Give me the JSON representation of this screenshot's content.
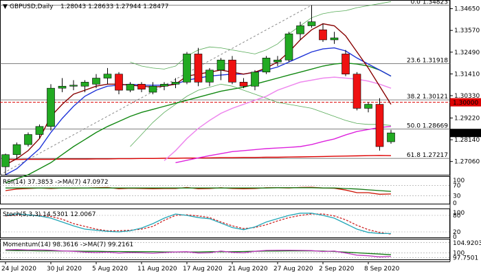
{
  "header": {
    "symbol_label": "GBPUSD,Daily",
    "ohlc": "1.28043 1.28633 1.27944 1.28477",
    "arrow_glyph": "▼"
  },
  "colors": {
    "bull": "#22aa22",
    "bear": "#ee1111",
    "wick": "#000000",
    "ma_fast": "#880000",
    "ma_mid": "#1f34d8",
    "ma_slow": "#118811",
    "ma_band": "#ee88ee",
    "ma_long": "#dd22dd",
    "ma_200": "#dd0000",
    "bollinger": "#55aa55",
    "fib": "#555555",
    "level_red": "#dd0000",
    "rsi": "#cc1100",
    "rsi_ma": "#117711",
    "stoch_k": "#22a7b7",
    "stoch_d": "#cc2222",
    "momentum": "#bb33bb",
    "momentum_ma": "#117711",
    "current_price_bg": "#000000",
    "level_price_bg": "#dd0000"
  },
  "chart_data": {
    "type": "candlestick",
    "title": "GBPUSD,Daily",
    "ylim": [
      1.264,
      1.3508
    ],
    "price_ticks": [
      "1.34650",
      "1.33570",
      "1.32490",
      "1.31410",
      "1.30330",
      "1.29220",
      "1.28140",
      "1.27060"
    ],
    "price_tick_values": [
      1.3465,
      1.3357,
      1.3249,
      1.3141,
      1.3033,
      1.2922,
      1.2814,
      1.2706
    ],
    "x_labels": [
      "24 Jul 2020",
      "30 Jul 2020",
      "5 Aug 2020",
      "11 Aug 2020",
      "17 Aug 2020",
      "21 Aug 2020",
      "27 Aug 2020",
      "2 Sep 2020",
      "8 Sep 2020"
    ],
    "x_label_bars": [
      0,
      4,
      8,
      12,
      16,
      20,
      24,
      28,
      32
    ],
    "candles": [
      [
        1.268,
        1.2745,
        1.264,
        1.274
      ],
      [
        1.274,
        1.28,
        1.272,
        1.279
      ],
      [
        1.279,
        1.285,
        1.278,
        1.284
      ],
      [
        1.284,
        1.289,
        1.282,
        1.288
      ],
      [
        1.288,
        1.309,
        1.286,
        1.307
      ],
      [
        1.307,
        1.312,
        1.305,
        1.308
      ],
      [
        1.308,
        1.311,
        1.306,
        1.3085
      ],
      [
        1.308,
        1.311,
        1.305,
        1.31
      ],
      [
        1.309,
        1.314,
        1.307,
        1.312
      ],
      [
        1.312,
        1.317,
        1.309,
        1.314
      ],
      [
        1.314,
        1.315,
        1.304,
        1.306
      ],
      [
        1.306,
        1.31,
        1.305,
        1.309
      ],
      [
        1.309,
        1.31,
        1.305,
        1.3065
      ],
      [
        1.305,
        1.31,
        1.304,
        1.308
      ],
      [
        1.308,
        1.31,
        1.306,
        1.309
      ],
      [
        1.309,
        1.312,
        1.307,
        1.31
      ],
      [
        1.31,
        1.325,
        1.309,
        1.324
      ],
      [
        1.324,
        1.327,
        1.308,
        1.31
      ],
      [
        1.31,
        1.317,
        1.308,
        1.316
      ],
      [
        1.316,
        1.322,
        1.311,
        1.321
      ],
      [
        1.321,
        1.323,
        1.309,
        1.31
      ],
      [
        1.31,
        1.312,
        1.307,
        1.308
      ],
      [
        1.308,
        1.316,
        1.306,
        1.315
      ],
      [
        1.315,
        1.323,
        1.314,
        1.322
      ],
      [
        1.32,
        1.323,
        1.318,
        1.321
      ],
      [
        1.321,
        1.335,
        1.32,
        1.334
      ],
      [
        1.334,
        1.34,
        1.331,
        1.338
      ],
      [
        1.338,
        1.3482,
        1.337,
        1.34
      ],
      [
        1.336,
        1.339,
        1.33,
        1.331
      ],
      [
        1.331,
        1.335,
        1.329,
        1.332
      ],
      [
        1.324,
        1.326,
        1.313,
        1.314
      ],
      [
        1.314,
        1.315,
        1.296,
        1.297
      ],
      [
        1.297,
        1.3,
        1.295,
        1.299
      ],
      [
        1.299,
        1.302,
        1.276,
        1.278
      ],
      [
        1.2804,
        1.2863,
        1.2794,
        1.2848
      ]
    ],
    "moving_averages": [
      {
        "color_key": "ma_200",
        "values": [
          1.2716,
          1.2716,
          1.2717,
          1.2717,
          1.2717,
          1.2718,
          1.2718,
          1.2718,
          1.2719,
          1.2719,
          1.272,
          1.272,
          1.2721,
          1.2721,
          1.2722,
          1.2722,
          1.2723,
          1.2723,
          1.2724,
          1.2725,
          1.2725,
          1.2726,
          1.2726,
          1.2727,
          1.2727,
          1.2728,
          1.2729,
          1.273,
          1.2731,
          1.2732,
          1.2733,
          1.2734,
          1.2735,
          1.2736,
          1.2735
        ]
      },
      {
        "color_key": "ma_long",
        "values": [
          null,
          null,
          null,
          null,
          null,
          null,
          null,
          null,
          null,
          null,
          null,
          null,
          null,
          null,
          null,
          1.27,
          1.2712,
          1.2724,
          1.2735,
          1.2745,
          1.2755,
          1.276,
          1.2765,
          1.277,
          1.2773,
          1.2776,
          1.278,
          1.279,
          1.2805,
          1.2818,
          1.2838,
          1.2855,
          1.2865,
          1.2875,
          1.288
        ]
      },
      {
        "color_key": "ma_band",
        "values": [
          null,
          null,
          null,
          null,
          null,
          null,
          null,
          null,
          null,
          null,
          null,
          null,
          null,
          null,
          1.271,
          1.276,
          1.282,
          1.287,
          1.291,
          1.2945,
          1.297,
          1.299,
          1.301,
          1.303,
          1.306,
          1.308,
          1.31,
          1.311,
          1.312,
          1.3125,
          1.312,
          1.3115,
          1.3105,
          1.309,
          1.307
        ]
      },
      {
        "color_key": "ma_slow",
        "values": [
          1.26,
          1.262,
          1.264,
          1.267,
          1.27,
          1.274,
          1.278,
          1.2815,
          1.285,
          1.288,
          1.2905,
          1.293,
          1.295,
          1.2965,
          1.298,
          1.2995,
          1.301,
          1.3025,
          1.304,
          1.3055,
          1.3065,
          1.3075,
          1.309,
          1.3105,
          1.312,
          1.3135,
          1.315,
          1.3165,
          1.318,
          1.319,
          1.3195,
          1.319,
          1.318,
          1.316,
          1.313
        ]
      },
      {
        "color_key": "ma_mid",
        "values": [
          1.264,
          1.267,
          1.272,
          1.277,
          1.285,
          1.292,
          1.298,
          1.303,
          1.306,
          1.308,
          1.3085,
          1.309,
          1.3085,
          1.3085,
          1.3085,
          1.309,
          1.311,
          1.312,
          1.313,
          1.3135,
          1.314,
          1.314,
          1.315,
          1.316,
          1.3175,
          1.32,
          1.3225,
          1.325,
          1.3265,
          1.327,
          1.3255,
          1.322,
          1.319,
          1.316,
          1.313
        ]
      },
      {
        "color_key": "ma_fast",
        "values": [
          1.269,
          1.272,
          1.276,
          1.282,
          1.293,
          1.299,
          1.304,
          1.306,
          1.308,
          1.309,
          1.309,
          1.3085,
          1.308,
          1.3075,
          1.308,
          1.309,
          1.313,
          1.314,
          1.315,
          1.316,
          1.315,
          1.314,
          1.315,
          1.317,
          1.32,
          1.325,
          1.331,
          1.336,
          1.339,
          1.338,
          1.333,
          1.325,
          1.317,
          1.308,
          1.299
        ]
      }
    ],
    "bollinger": {
      "upper": [
        null,
        null,
        null,
        null,
        null,
        null,
        null,
        null,
        null,
        null,
        null,
        1.32,
        1.318,
        1.317,
        1.3165,
        1.318,
        1.323,
        1.326,
        1.3275,
        1.327,
        1.326,
        1.325,
        1.324,
        1.326,
        1.329,
        1.334,
        1.338,
        1.342,
        1.344,
        1.345,
        1.3455,
        1.347,
        1.348,
        1.349,
        1.35
      ],
      "lower": [
        null,
        null,
        null,
        null,
        null,
        null,
        null,
        null,
        null,
        null,
        null,
        1.278,
        1.284,
        1.29,
        1.295,
        1.299,
        1.303,
        1.306,
        1.3075,
        1.309,
        1.308,
        1.306,
        1.304,
        1.302,
        1.3,
        1.299,
        1.298,
        1.297,
        1.295,
        1.293,
        1.291,
        1.2895,
        1.289,
        1.289,
        1.2885
      ]
    },
    "fib_levels": [
      {
        "label": "0.0 1.34823",
        "value": 1.34823
      },
      {
        "label": "23.6 1.31918",
        "value": 1.31918
      },
      {
        "label": "38.2 1.30121",
        "value": 1.30121
      },
      {
        "label": "50.0 1.28669",
        "value": 1.28669
      },
      {
        "label": "61.8 1.27217",
        "value": 1.27217
      }
    ],
    "level_line": {
      "label": "1.30000",
      "value": 1.3
    },
    "current_price": {
      "label": "1.28477",
      "value": 1.28477
    },
    "indicators": [
      {
        "label": "RSI(14) 37.3853 ->MA(7) 47.0972",
        "ylim": [
          0,
          100
        ],
        "ticks": [
          100,
          70,
          30,
          0
        ],
        "series": [
          {
            "color_key": "rsi",
            "values": [
              50,
              56,
              58,
              60,
              58,
              60,
              59,
              60,
              61,
              62,
              57,
              59,
              58,
              57,
              58,
              58,
              62,
              57,
              58,
              61,
              58,
              57,
              58,
              61,
              61,
              60,
              62,
              63,
              60,
              59,
              52,
              42,
              42,
              36,
              37
            ]
          },
          {
            "color_key": "rsi_ma",
            "values": [
              60,
              60,
              60,
              60,
              60,
              60,
              60,
              60,
              60,
              60,
              60,
              60,
              60,
              60,
              60,
              60,
              60,
              60,
              60,
              60,
              60,
              60,
              60,
              60,
              61,
              61,
              61,
              61,
              60,
              60,
              58,
              56,
              53,
              50,
              47
            ]
          }
        ]
      },
      {
        "label": "Stoch(5,3,3) 14.5301 12.0067",
        "ylim": [
          0,
          100
        ],
        "ticks": [
          100,
          80,
          20,
          0
        ],
        "series": [
          {
            "color_key": "stoch_d",
            "values": [
              78,
              82,
              82,
              80,
              76,
              66,
              50,
              40,
              30,
              24,
              24,
              26,
              30,
              40,
              62,
              80,
              82,
              78,
              72,
              56,
              42,
              32,
              36,
              46,
              60,
              72,
              80,
              85,
              85,
              78,
              64,
              44,
              28,
              18,
              12
            ]
          },
          {
            "color_key": "stoch_k",
            "values": [
              80,
              85,
              82,
              78,
              70,
              56,
              42,
              30,
              26,
              22,
              20,
              24,
              34,
              50,
              70,
              85,
              80,
              72,
              68,
              52,
              36,
              28,
              38,
              56,
              68,
              80,
              88,
              88,
              80,
              70,
              50,
              30,
              18,
              14,
              14
            ]
          }
        ]
      },
      {
        "label": "Momentum(14) 98.3616 ->MA(7) 99.2161",
        "ylim": [
          97.0,
          106.0
        ],
        "ticks": [
          104.9203,
          100,
          97.7501
        ],
        "tick_labels": [
          "104.9203",
          "100",
          "97.7501"
        ],
        "series": [
          {
            "color_key": "momentum_ma",
            "values": [
              101.2,
              101.1,
              101.1,
              101.0,
              101.0,
              100.9,
              100.9,
              100.8,
              100.8,
              100.7,
              100.7,
              100.6,
              100.6,
              100.6,
              100.5,
              100.5,
              100.5,
              100.5,
              100.6,
              100.6,
              100.6,
              100.7,
              100.8,
              100.9,
              100.9,
              101.0,
              101.0,
              101.0,
              100.9,
              100.7,
              100.4,
              100.1,
              99.8,
              99.5,
              99.2
            ]
          },
          {
            "color_key": "momentum",
            "values": [
              101.5,
              101.6,
              101.4,
              101.5,
              101.3,
              101.0,
              100.8,
              100.4,
              100.2,
              100.4,
              100.0,
              100.2,
              100.1,
              99.9,
              100.2,
              100.5,
              100.6,
              100.0,
              100.1,
              100.9,
              100.3,
              100.1,
              100.8,
              101.2,
              101.3,
              101.3,
              101.2,
              101.1,
              100.7,
              100.9,
              100.0,
              99.0,
              98.7,
              98.2,
              98.4
            ]
          }
        ]
      }
    ]
  }
}
